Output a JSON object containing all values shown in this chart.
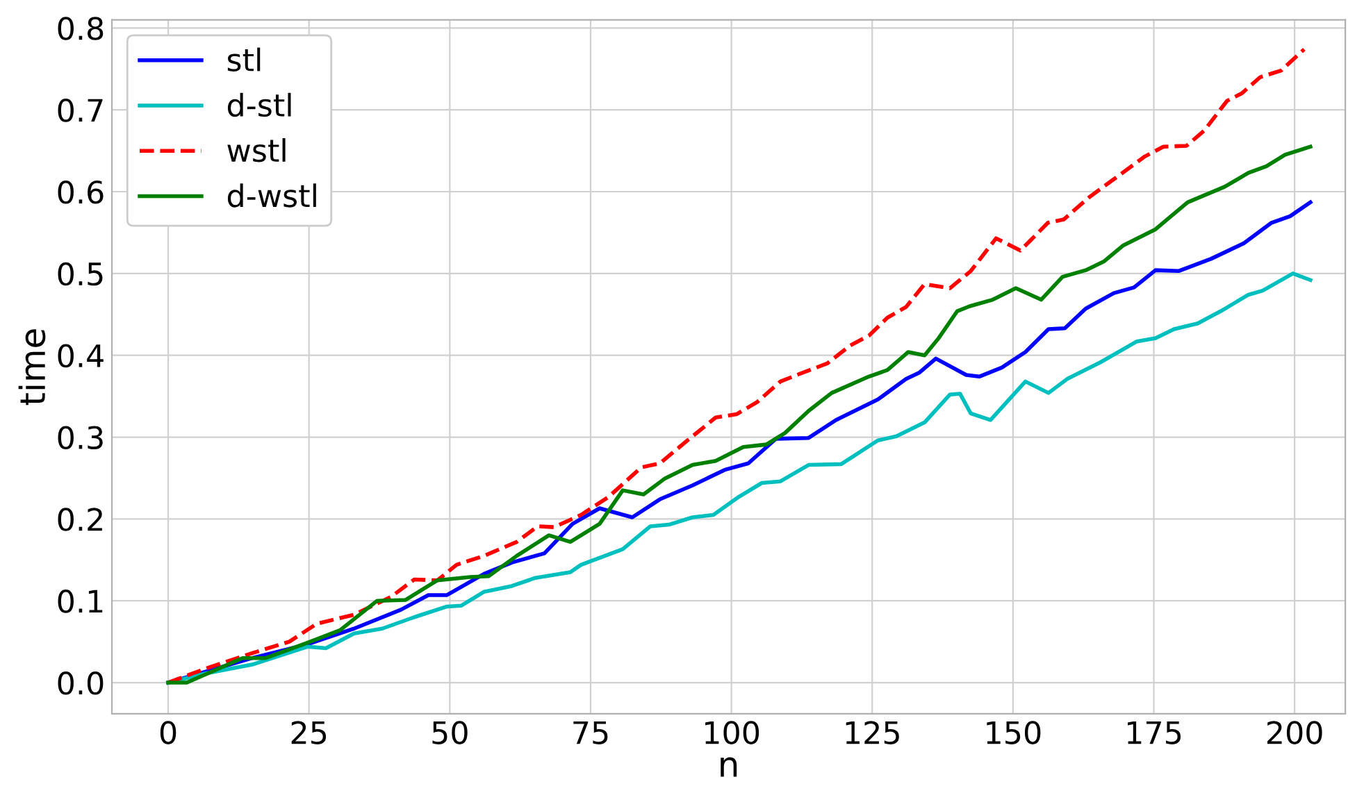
{
  "chart_data": {
    "type": "line",
    "xlabel": "n",
    "ylabel": "time",
    "xlim": [
      -10,
      209
    ],
    "ylim": [
      -0.038,
      0.81
    ],
    "xticks": [
      0,
      25,
      50,
      75,
      100,
      125,
      150,
      175,
      200
    ],
    "yticks": [
      {
        "value": 0,
        "label": "0.0"
      },
      {
        "value": 0.1,
        "label": "0.1"
      },
      {
        "value": 0.2,
        "label": "0.2"
      },
      {
        "value": 0.3,
        "label": "0.3"
      },
      {
        "value": 0.4,
        "label": "0.4"
      },
      {
        "value": 0.5,
        "label": "0.5"
      },
      {
        "value": 0.6,
        "label": "0.6"
      },
      {
        "value": 0.7,
        "label": "0.7"
      },
      {
        "value": 0.8,
        "label": "0.8"
      }
    ],
    "grid": true,
    "legend": "top left",
    "series": [
      {
        "name": "stl",
        "color": "#0000ff",
        "line_style": "solid",
        "x": [
          0,
          5,
          14.9,
          24.8,
          33,
          41.3,
          46.2,
          49.5,
          56.1,
          61.1,
          66.8,
          71.8,
          76.6,
          82.4,
          87.3,
          93.1,
          98.8,
          103,
          107.9,
          113.7,
          118.6,
          126,
          131,
          133.4,
          136.3,
          141.7,
          144,
          148,
          152.2,
          156.3,
          159.2,
          162.9,
          167.9,
          171.5,
          175.3,
          179.4,
          185.2,
          191,
          195.9,
          199.2,
          202.8
        ],
        "values": [
          0,
          0.01,
          0.03,
          0.047,
          0.066,
          0.089,
          0.107,
          0.107,
          0.133,
          0.147,
          0.158,
          0.194,
          0.213,
          0.202,
          0.224,
          0.241,
          0.26,
          0.268,
          0.298,
          0.299,
          0.321,
          0.346,
          0.371,
          0.379,
          0.396,
          0.376,
          0.374,
          0.385,
          0.404,
          0.432,
          0.433,
          0.457,
          0.476,
          0.483,
          0.504,
          0.503,
          0.518,
          0.537,
          0.562,
          0.57,
          0.587
        ]
      },
      {
        "name": "d-stl",
        "color": "#00bfbf",
        "line_style": "solid",
        "x": [
          0,
          6.6,
          14.9,
          24.8,
          28,
          33,
          38,
          43.7,
          49.5,
          52,
          56.1,
          61,
          65.2,
          71.4,
          73.3,
          80.7,
          85.6,
          88.9,
          93.1,
          96.8,
          101.3,
          105.4,
          108.7,
          113.7,
          119.5,
          126,
          129.3,
          134.3,
          138.8,
          140.6,
          142.5,
          146,
          152.2,
          156.3,
          159.6,
          165.4,
          172,
          175.3,
          178.6,
          182.8,
          186.9,
          191.8,
          194.3,
          199.7,
          202.8
        ],
        "values": [
          0,
          0.011,
          0.022,
          0.044,
          0.042,
          0.06,
          0.066,
          0.08,
          0.093,
          0.094,
          0.111,
          0.118,
          0.128,
          0.135,
          0.144,
          0.163,
          0.191,
          0.193,
          0.202,
          0.205,
          0.227,
          0.244,
          0.246,
          0.266,
          0.267,
          0.296,
          0.301,
          0.318,
          0.352,
          0.353,
          0.329,
          0.321,
          0.368,
          0.354,
          0.371,
          0.391,
          0.417,
          0.421,
          0.432,
          0.439,
          0.454,
          0.474,
          0.479,
          0.5,
          0.492
        ]
      },
      {
        "name": "wstl",
        "color": "#ff0000",
        "line_style": "dashed",
        "x": [
          0,
          6.6,
          14.9,
          21.5,
          26.4,
          33,
          39.6,
          43.7,
          47.8,
          51.2,
          56.1,
          61.9,
          65.6,
          68.5,
          73.3,
          78.2,
          84,
          87.3,
          92.2,
          97.2,
          100.9,
          104.6,
          108.7,
          112,
          117,
          121.1,
          124.4,
          127.7,
          131,
          134.3,
          138.8,
          142.5,
          147,
          151.3,
          156.2,
          159,
          163.5,
          173.4,
          176.7,
          180.8,
          184,
          188,
          190.6,
          193.9,
          197.6,
          201.7
        ],
        "values": [
          0,
          0.017,
          0.036,
          0.05,
          0.072,
          0.083,
          0.105,
          0.126,
          0.125,
          0.144,
          0.155,
          0.172,
          0.191,
          0.19,
          0.205,
          0.227,
          0.263,
          0.268,
          0.296,
          0.324,
          0.328,
          0.343,
          0.368,
          0.377,
          0.39,
          0.412,
          0.424,
          0.446,
          0.459,
          0.487,
          0.482,
          0.503,
          0.543,
          0.528,
          0.562,
          0.566,
          0.593,
          0.643,
          0.655,
          0.656,
          0.675,
          0.711,
          0.72,
          0.74,
          0.748,
          0.774
        ]
      },
      {
        "name": "d-wstl",
        "color": "#008000",
        "line_style": "solid",
        "x": [
          0,
          3.3,
          13.2,
          17.3,
          24.8,
          30.5,
          37.1,
          42.1,
          47.8,
          53.6,
          56.9,
          61.9,
          67.6,
          71.4,
          76.6,
          80.7,
          84.4,
          88.1,
          93.1,
          97.2,
          102.1,
          106.2,
          109.5,
          113.7,
          117.8,
          124.4,
          127.7,
          131.4,
          134.3,
          136.8,
          140.1,
          142.3,
          146.4,
          150.5,
          155,
          158.8,
          162.9,
          166.2,
          169.5,
          175.3,
          181,
          187.6,
          191.8,
          195,
          198.3,
          202.8
        ],
        "values": [
          0,
          0.0,
          0.03,
          0.03,
          0.049,
          0.064,
          0.1,
          0.101,
          0.125,
          0.129,
          0.13,
          0.155,
          0.18,
          0.172,
          0.194,
          0.235,
          0.23,
          0.249,
          0.266,
          0.271,
          0.288,
          0.291,
          0.305,
          0.332,
          0.354,
          0.374,
          0.382,
          0.404,
          0.4,
          0.421,
          0.454,
          0.46,
          0.468,
          0.482,
          0.468,
          0.496,
          0.504,
          0.515,
          0.534,
          0.554,
          0.587,
          0.606,
          0.623,
          0.631,
          0.645,
          0.655
        ]
      }
    ]
  }
}
